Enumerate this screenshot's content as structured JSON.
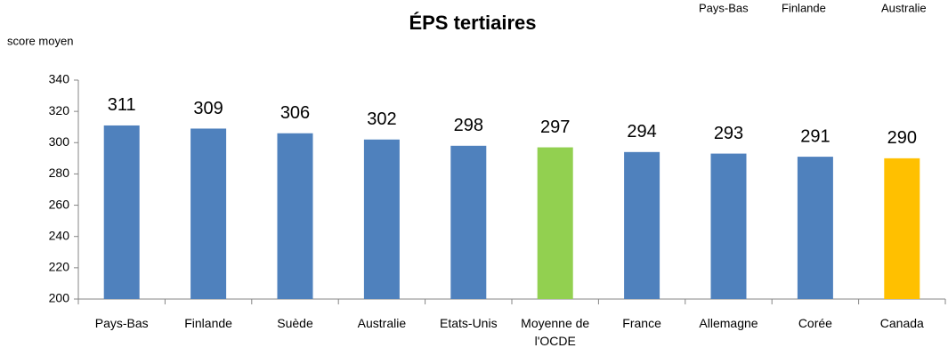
{
  "chart_data": {
    "type": "bar",
    "title": "ÉPS tertiaires",
    "y_label": "score moyen",
    "annotations": [
      "Pays-Bas",
      "Finlande",
      "Australie"
    ],
    "categories": [
      "Pays-Bas",
      "Finlande",
      "Suède",
      "Australie",
      "Etats-Unis",
      "Moyenne de l'OCDE",
      "France",
      "Allemagne",
      "Corée",
      "Canada"
    ],
    "values": [
      311,
      309,
      306,
      302,
      298,
      297,
      294,
      293,
      291,
      290
    ],
    "colors": [
      "#4f81bd",
      "#4f81bd",
      "#4f81bd",
      "#4f81bd",
      "#4f81bd",
      "#92d050",
      "#4f81bd",
      "#4f81bd",
      "#4f81bd",
      "#ffc000"
    ],
    "ylim": [
      200,
      340
    ],
    "yticks": [
      200,
      220,
      240,
      260,
      280,
      300,
      320,
      340
    ],
    "grid": false
  }
}
